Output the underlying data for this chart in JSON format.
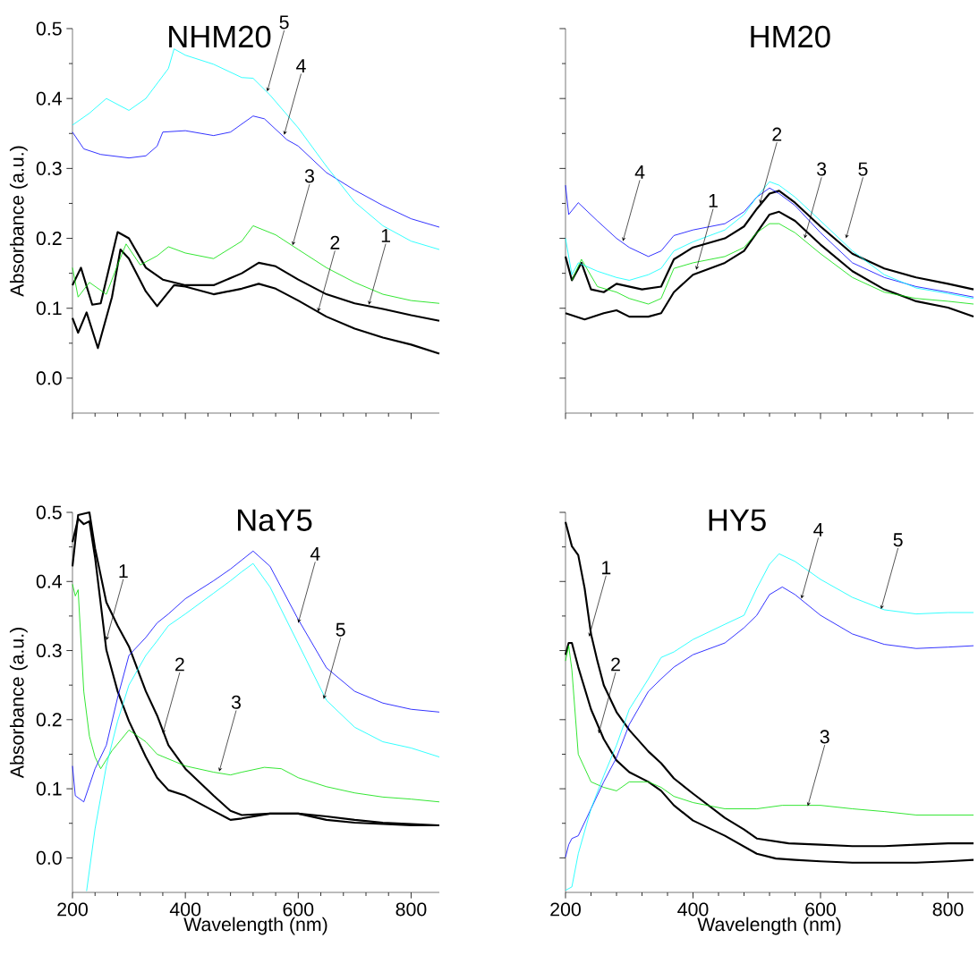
{
  "chart_data": [
    {
      "type": "line",
      "title": "NHM20",
      "ylabel": "Absorbance (a.u.)",
      "xlim": [
        200,
        850
      ],
      "ylim": [
        -0.05,
        0.5
      ],
      "xticks": [
        200,
        400,
        600,
        800
      ],
      "yticks": [
        {
          "value": 0,
          "label": "0.0"
        },
        0.1,
        0.2,
        0.3,
        0.4,
        0.5
      ],
      "tick_labels": "y",
      "series": [
        {
          "color": "#000000",
          "x": [
            200,
            215,
            235,
            250,
            280,
            300,
            330,
            360,
            400,
            450,
            500,
            530,
            560,
            600,
            650,
            700,
            750,
            800,
            850
          ],
          "values": [
            0.133,
            0.158,
            0.105,
            0.107,
            0.209,
            0.2,
            0.158,
            0.141,
            0.133,
            0.133,
            0.15,
            0.165,
            0.16,
            0.141,
            0.12,
            0.107,
            0.099,
            0.09,
            0.082
          ]
        },
        {
          "color": "#000000",
          "x": [
            200,
            210,
            225,
            245,
            270,
            285,
            300,
            330,
            350,
            380,
            400,
            450,
            500,
            530,
            560,
            600,
            650,
            700,
            750,
            800,
            850
          ],
          "values": [
            0.086,
            0.065,
            0.094,
            0.043,
            0.116,
            0.184,
            0.171,
            0.124,
            0.103,
            0.133,
            0.131,
            0.12,
            0.128,
            0.135,
            0.128,
            0.111,
            0.088,
            0.071,
            0.058,
            0.048,
            0.035
          ]
        },
        {
          "color": "#00e000",
          "x": [
            200,
            210,
            230,
            260,
            280,
            295,
            320,
            350,
            370,
            400,
            450,
            500,
            520,
            560,
            600,
            650,
            700,
            750,
            800,
            850
          ],
          "values": [
            0.158,
            0.116,
            0.137,
            0.12,
            0.162,
            0.192,
            0.162,
            0.175,
            0.188,
            0.179,
            0.171,
            0.196,
            0.218,
            0.205,
            0.184,
            0.158,
            0.137,
            0.12,
            0.111,
            0.107
          ]
        },
        {
          "color": "#0000ff",
          "x": [
            200,
            220,
            250,
            300,
            330,
            350,
            360,
            400,
            450,
            480,
            520,
            540,
            580,
            600,
            650,
            700,
            750,
            800,
            850
          ],
          "values": [
            0.352,
            0.328,
            0.32,
            0.315,
            0.318,
            0.332,
            0.352,
            0.354,
            0.347,
            0.352,
            0.375,
            0.371,
            0.341,
            0.332,
            0.294,
            0.269,
            0.247,
            0.228,
            0.216
          ]
        },
        {
          "color": "#00ffff",
          "x": [
            200,
            230,
            260,
            300,
            330,
            370,
            380,
            400,
            450,
            500,
            520,
            550,
            600,
            650,
            700,
            750,
            800,
            850
          ],
          "values": [
            0.362,
            0.379,
            0.4,
            0.383,
            0.4,
            0.443,
            0.471,
            0.462,
            0.449,
            0.43,
            0.429,
            0.405,
            0.358,
            0.303,
            0.252,
            0.218,
            0.196,
            0.184
          ]
        }
      ],
      "annotations": [
        {
          "text": "5",
          "x": 545,
          "y": 0.41
        },
        {
          "text": "4",
          "x": 575,
          "y": 0.348
        },
        {
          "text": "3",
          "x": 590,
          "y": 0.19
        },
        {
          "text": "2",
          "x": 635,
          "y": 0.095
        },
        {
          "text": "1",
          "x": 725,
          "y": 0.105
        }
      ]
    },
    {
      "type": "line",
      "title": "HM20",
      "xlim": [
        200,
        840
      ],
      "ylim": [
        -0.05,
        0.5
      ],
      "xticks": [
        200,
        400,
        600,
        800
      ],
      "yticks": [
        0,
        0.1,
        0.2,
        0.3,
        0.4,
        0.5
      ],
      "tick_labels": false,
      "series": [
        {
          "color": "#000000",
          "x": [
            200,
            230,
            260,
            280,
            300,
            330,
            350,
            370,
            400,
            450,
            480,
            500,
            520,
            535,
            560,
            600,
            650,
            700,
            750,
            800,
            840
          ],
          "values": [
            0.093,
            0.084,
            0.093,
            0.097,
            0.088,
            0.088,
            0.093,
            0.123,
            0.148,
            0.165,
            0.182,
            0.208,
            0.234,
            0.238,
            0.225,
            0.191,
            0.153,
            0.127,
            0.11,
            0.101,
            0.088
          ]
        },
        {
          "color": "#000000",
          "x": [
            200,
            210,
            225,
            240,
            260,
            280,
            320,
            350,
            370,
            400,
            450,
            480,
            500,
            520,
            535,
            560,
            600,
            650,
            700,
            750,
            800,
            840
          ],
          "values": [
            0.174,
            0.14,
            0.165,
            0.127,
            0.123,
            0.135,
            0.127,
            0.131,
            0.17,
            0.187,
            0.2,
            0.217,
            0.242,
            0.264,
            0.268,
            0.251,
            0.217,
            0.178,
            0.157,
            0.144,
            0.135,
            0.127
          ]
        },
        {
          "color": "#00e000",
          "x": [
            210,
            225,
            250,
            280,
            300,
            330,
            350,
            370,
            400,
            450,
            480,
            500,
            520,
            535,
            560,
            600,
            650,
            700,
            750,
            800,
            840
          ],
          "values": [
            0.14,
            0.17,
            0.131,
            0.123,
            0.114,
            0.106,
            0.114,
            0.157,
            0.165,
            0.174,
            0.187,
            0.208,
            0.221,
            0.221,
            0.208,
            0.178,
            0.144,
            0.123,
            0.114,
            0.11,
            0.106
          ]
        },
        {
          "color": "#0000ff",
          "x": [
            200,
            205,
            220,
            250,
            280,
            300,
            330,
            350,
            370,
            400,
            450,
            480,
            500,
            520,
            535,
            560,
            600,
            650,
            700,
            750,
            800,
            840
          ],
          "values": [
            0.276,
            0.234,
            0.251,
            0.225,
            0.2,
            0.187,
            0.174,
            0.182,
            0.204,
            0.212,
            0.221,
            0.238,
            0.259,
            0.272,
            0.264,
            0.247,
            0.208,
            0.165,
            0.144,
            0.131,
            0.123,
            0.116
          ]
        },
        {
          "color": "#00ffff",
          "x": [
            200,
            210,
            220,
            250,
            280,
            300,
            330,
            350,
            370,
            400,
            450,
            480,
            500,
            520,
            535,
            560,
            600,
            650,
            700,
            750,
            800,
            840
          ],
          "values": [
            0.2,
            0.148,
            0.165,
            0.153,
            0.144,
            0.14,
            0.148,
            0.157,
            0.182,
            0.195,
            0.212,
            0.234,
            0.259,
            0.281,
            0.276,
            0.259,
            0.225,
            0.182,
            0.148,
            0.129,
            0.121,
            0.114
          ]
        }
      ],
      "annotations": [
        {
          "text": "4",
          "x": 290,
          "y": 0.196
        },
        {
          "text": "1",
          "x": 405,
          "y": 0.155
        },
        {
          "text": "2",
          "x": 505,
          "y": 0.25
        },
        {
          "text": "3",
          "x": 575,
          "y": 0.2
        },
        {
          "text": "5",
          "x": 640,
          "y": 0.2
        }
      ]
    },
    {
      "type": "line",
      "title": "NaY5",
      "xlabel": "Wavelength (nm)",
      "ylabel": "Absorbance (a.u.)",
      "xlim": [
        200,
        850
      ],
      "ylim": [
        -0.05,
        0.5
      ],
      "xticks": [
        200,
        400,
        600,
        800
      ],
      "yticks": [
        {
          "value": 0,
          "label": "0.0"
        },
        0.1,
        0.2,
        0.3,
        0.4,
        0.5
      ],
      "series": [
        {
          "color": "#000000",
          "x": [
            200,
            210,
            220,
            230,
            240,
            260,
            280,
            300,
            330,
            350,
            370,
            400,
            450,
            480,
            500,
            550,
            600,
            650,
            700,
            750,
            800,
            850
          ],
          "values": [
            0.457,
            0.491,
            0.483,
            0.487,
            0.435,
            0.301,
            0.241,
            0.198,
            0.146,
            0.116,
            0.098,
            0.09,
            0.068,
            0.055,
            0.057,
            0.064,
            0.064,
            0.06,
            0.055,
            0.051,
            0.049,
            0.047
          ]
        },
        {
          "color": "#000000",
          "x": [
            200,
            210,
            230,
            240,
            260,
            280,
            300,
            330,
            350,
            370,
            400,
            450,
            480,
            500,
            550,
            600,
            650,
            700,
            750,
            800,
            850
          ],
          "values": [
            0.422,
            0.496,
            0.5,
            0.448,
            0.37,
            0.336,
            0.306,
            0.241,
            0.206,
            0.163,
            0.129,
            0.09,
            0.068,
            0.062,
            0.064,
            0.064,
            0.055,
            0.051,
            0.049,
            0.047,
            0.047
          ]
        },
        {
          "color": "#00e000",
          "x": [
            200,
            205,
            210,
            220,
            230,
            240,
            250,
            270,
            300,
            330,
            350,
            400,
            450,
            480,
            500,
            540,
            570,
            600,
            650,
            700,
            750,
            800,
            850
          ],
          "values": [
            0.396,
            0.379,
            0.388,
            0.241,
            0.176,
            0.146,
            0.129,
            0.155,
            0.185,
            0.168,
            0.15,
            0.133,
            0.124,
            0.12,
            0.124,
            0.131,
            0.129,
            0.116,
            0.103,
            0.094,
            0.088,
            0.085,
            0.081
          ]
        },
        {
          "color": "#0000ff",
          "x": [
            200,
            205,
            220,
            240,
            260,
            280,
            300,
            330,
            350,
            370,
            400,
            450,
            480,
            500,
            520,
            550,
            600,
            650,
            700,
            750,
            800,
            850
          ],
          "values": [
            0.133,
            0.09,
            0.081,
            0.129,
            0.163,
            0.232,
            0.293,
            0.319,
            0.34,
            0.353,
            0.375,
            0.401,
            0.418,
            0.431,
            0.444,
            0.422,
            0.345,
            0.275,
            0.241,
            0.224,
            0.215,
            0.211
          ]
        },
        {
          "color": "#00ffff",
          "x": [
            225,
            240,
            260,
            280,
            300,
            330,
            350,
            370,
            400,
            450,
            480,
            500,
            520,
            550,
            600,
            650,
            700,
            750,
            800,
            850
          ],
          "values": [
            -0.048,
            0.042,
            0.133,
            0.198,
            0.25,
            0.293,
            0.314,
            0.336,
            0.353,
            0.383,
            0.401,
            0.414,
            0.426,
            0.392,
            0.31,
            0.228,
            0.189,
            0.168,
            0.159,
            0.146
          ]
        }
      ],
      "annotations": [
        {
          "text": "1",
          "x": 260,
          "y": 0.315
        },
        {
          "text": "2",
          "x": 360,
          "y": 0.18
        },
        {
          "text": "3",
          "x": 460,
          "y": 0.125
        },
        {
          "text": "4",
          "x": 600,
          "y": 0.34
        },
        {
          "text": "5",
          "x": 645,
          "y": 0.23
        }
      ]
    },
    {
      "type": "line",
      "title": "HY5",
      "xlabel": "Wavelength (nm)",
      "xlim": [
        200,
        840
      ],
      "ylim": [
        -0.05,
        0.5
      ],
      "xticks": [
        200,
        400,
        600,
        800
      ],
      "yticks": [
        0,
        0.1,
        0.2,
        0.3,
        0.4,
        0.5
      ],
      "tick_labels": "x",
      "series": [
        {
          "color": "#000000",
          "x": [
            200,
            210,
            220,
            230,
            240,
            250,
            260,
            280,
            300,
            330,
            350,
            370,
            400,
            450,
            480,
            500,
            550,
            600,
            650,
            700,
            750,
            800,
            840
          ],
          "values": [
            0.486,
            0.451,
            0.438,
            0.39,
            0.324,
            0.285,
            0.25,
            0.211,
            0.185,
            0.154,
            0.137,
            0.115,
            0.093,
            0.058,
            0.041,
            0.028,
            0.021,
            0.019,
            0.017,
            0.017,
            0.019,
            0.021,
            0.021
          ]
        },
        {
          "color": "#000000",
          "x": [
            200,
            205,
            210,
            220,
            240,
            260,
            280,
            300,
            330,
            350,
            370,
            400,
            450,
            500,
            530,
            560,
            600,
            650,
            700,
            750,
            800,
            840
          ],
          "values": [
            0.294,
            0.311,
            0.311,
            0.276,
            0.215,
            0.172,
            0.141,
            0.124,
            0.11,
            0.097,
            0.076,
            0.054,
            0.032,
            0.006,
            -0.001,
            -0.003,
            -0.005,
            -0.007,
            -0.007,
            -0.007,
            -0.005,
            -0.003
          ]
        },
        {
          "color": "#00e000",
          "x": [
            200,
            205,
            210,
            220,
            240,
            260,
            280,
            300,
            330,
            350,
            370,
            400,
            450,
            500,
            540,
            600,
            650,
            700,
            750,
            800,
            840
          ],
          "values": [
            0.285,
            0.307,
            0.272,
            0.15,
            0.11,
            0.102,
            0.097,
            0.11,
            0.11,
            0.102,
            0.089,
            0.08,
            0.071,
            0.071,
            0.076,
            0.076,
            0.071,
            0.067,
            0.062,
            0.062,
            0.062
          ]
        },
        {
          "color": "#0000ff",
          "x": [
            200,
            205,
            210,
            220,
            240,
            260,
            280,
            300,
            330,
            350,
            370,
            400,
            450,
            480,
            500,
            520,
            540,
            560,
            600,
            650,
            700,
            750,
            800,
            840
          ],
          "values": [
            0.001,
            0.019,
            0.028,
            0.032,
            0.071,
            0.11,
            0.145,
            0.193,
            0.241,
            0.259,
            0.276,
            0.294,
            0.311,
            0.333,
            0.351,
            0.381,
            0.392,
            0.381,
            0.351,
            0.324,
            0.309,
            0.303,
            0.305,
            0.307
          ]
        },
        {
          "color": "#00ffff",
          "x": [
            200,
            210,
            220,
            240,
            260,
            280,
            300,
            330,
            350,
            370,
            400,
            450,
            480,
            500,
            520,
            535,
            560,
            600,
            650,
            700,
            750,
            800,
            840
          ],
          "values": [
            -0.047,
            -0.042,
            0.006,
            0.071,
            0.119,
            0.163,
            0.215,
            0.259,
            0.29,
            0.298,
            0.316,
            0.338,
            0.351,
            0.39,
            0.425,
            0.44,
            0.429,
            0.403,
            0.377,
            0.359,
            0.353,
            0.355,
            0.355
          ]
        }
      ],
      "annotations": [
        {
          "text": "1",
          "x": 237,
          "y": 0.32
        },
        {
          "text": "2",
          "x": 252,
          "y": 0.18
        },
        {
          "text": "3",
          "x": 580,
          "y": 0.075
        },
        {
          "text": "4",
          "x": 570,
          "y": 0.375
        },
        {
          "text": "5",
          "x": 695,
          "y": 0.36
        }
      ]
    }
  ]
}
